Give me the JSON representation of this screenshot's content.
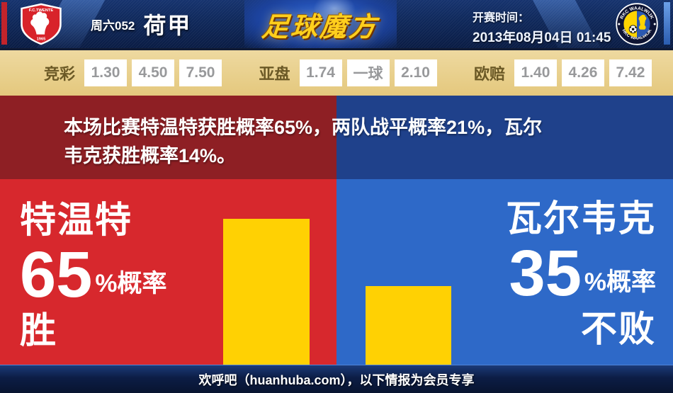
{
  "header": {
    "match_code": "周六052",
    "league": "荷甲",
    "brand_logo": "足球魔方",
    "kickoff_label": "开赛时间：",
    "kickoff_datetime": "2013年08月04日 01:45",
    "home_crest": {
      "name": "fc-twente-crest",
      "top_text": "F.C.TWENTE",
      "bottom_text": "1965"
    },
    "away_crest": {
      "name": "rkc-waalwijk-crest",
      "top_text": "RKC WAALWIJK",
      "bottom_text": "RKC WAALWIJK"
    }
  },
  "odds": {
    "jingcai": {
      "label": "竞彩",
      "values": [
        "1.30",
        "4.50",
        "7.50"
      ]
    },
    "yapan": {
      "label": "亚盘",
      "values": [
        "1.74",
        "一球",
        "2.10"
      ]
    },
    "oupei": {
      "label": "欧赔",
      "values": [
        "1.40",
        "4.26",
        "7.42"
      ]
    }
  },
  "summary": {
    "line1": "本场比赛特温特获胜概率65%，两队战平概率21%，瓦尔",
    "line2": "韦克获胜概率14%。"
  },
  "chart_data": {
    "type": "bar",
    "categories": [
      "特温特",
      "瓦尔韦克"
    ],
    "values": [
      65,
      35
    ],
    "unit": "%",
    "outcome_labels": [
      "胜",
      "不败"
    ],
    "annotations": {
      "home_win_pct": 65,
      "draw_pct": 21,
      "away_win_pct": 14,
      "away_unbeaten_pct": 35
    },
    "ylim": [
      0,
      100
    ],
    "bar_color": "#ffd103",
    "legend_position": "none",
    "grid": false
  },
  "left_panel": {
    "team": "特温特",
    "value": "65",
    "suffix": "%概率",
    "outcome": "胜"
  },
  "right_panel": {
    "team": "瓦尔韦克",
    "value": "35",
    "suffix": "%概率",
    "outcome": "不败"
  },
  "footer": {
    "text": "欢呼吧（huanhuba.com），以下情报为会员专享"
  },
  "colors": {
    "home_dark": "#8e1f24",
    "away_dark": "#1f418b",
    "home_bright": "#d7282d",
    "away_bright": "#2e69c8",
    "bar_yellow": "#ffd103",
    "odds_bg": "#e8cd89",
    "brand_gold": "#ffcf1d"
  }
}
